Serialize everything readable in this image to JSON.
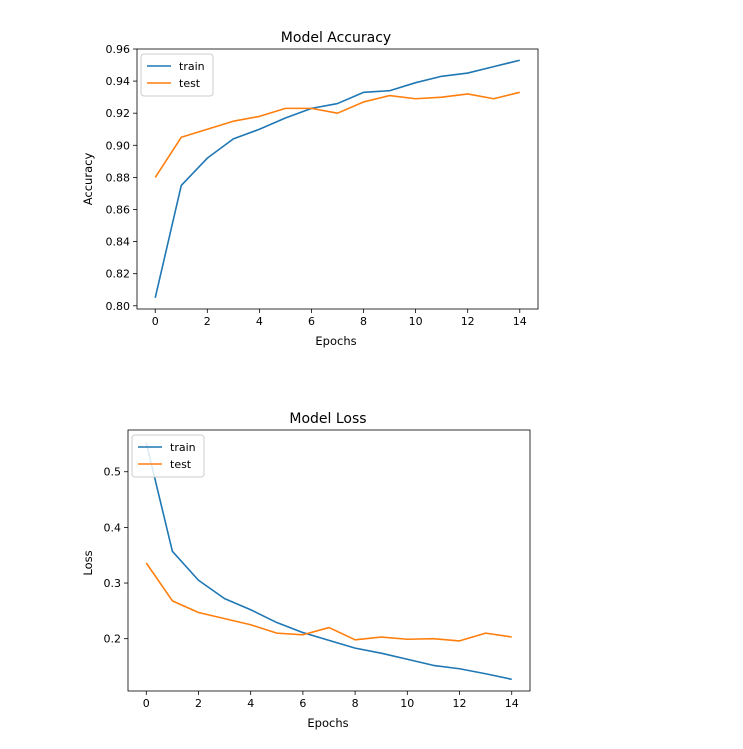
{
  "chart_data": [
    {
      "type": "line",
      "title": "Model Accuracy",
      "xlabel": "Epochs",
      "ylabel": "Accuracy",
      "x": [
        0,
        1,
        2,
        3,
        4,
        5,
        6,
        7,
        8,
        9,
        10,
        11,
        12,
        13,
        14
      ],
      "xlim": [
        -0.7,
        14.7
      ],
      "ylim": [
        0.798,
        0.96
      ],
      "xticks": [
        0,
        2,
        4,
        6,
        8,
        10,
        12,
        14
      ],
      "yticks": [
        0.8,
        0.82,
        0.84,
        0.86,
        0.88,
        0.9,
        0.92,
        0.94,
        0.96
      ],
      "ytick_labels": [
        "0.80",
        "0.82",
        "0.84",
        "0.86",
        "0.88",
        "0.90",
        "0.92",
        "0.94",
        "0.96"
      ],
      "grid": false,
      "legend": "upper-left",
      "series": [
        {
          "name": "train",
          "color": "#1f77b4",
          "values": [
            0.805,
            0.875,
            0.892,
            0.904,
            0.91,
            0.917,
            0.923,
            0.926,
            0.933,
            0.934,
            0.939,
            0.943,
            0.945,
            0.949,
            0.953
          ]
        },
        {
          "name": "test",
          "color": "#ff7f0e",
          "values": [
            0.88,
            0.905,
            0.91,
            0.915,
            0.918,
            0.923,
            0.923,
            0.92,
            0.927,
            0.931,
            0.929,
            0.93,
            0.932,
            0.929,
            0.933
          ]
        }
      ]
    },
    {
      "type": "line",
      "title": "Model Loss",
      "xlabel": "Epochs",
      "ylabel": "Loss",
      "x": [
        0,
        1,
        2,
        3,
        4,
        5,
        6,
        7,
        8,
        9,
        10,
        11,
        12,
        13,
        14
      ],
      "xlim": [
        -0.7,
        14.7
      ],
      "ylim": [
        0.106,
        0.575
      ],
      "xticks": [
        0,
        2,
        4,
        6,
        8,
        10,
        12,
        14
      ],
      "yticks": [
        0.2,
        0.3,
        0.4,
        0.5
      ],
      "ytick_labels": [
        "0.2",
        "0.3",
        "0.4",
        "0.5"
      ],
      "grid": false,
      "legend": "upper-left",
      "series": [
        {
          "name": "train",
          "color": "#1f77b4",
          "values": [
            0.552,
            0.357,
            0.305,
            0.272,
            0.252,
            0.229,
            0.211,
            0.197,
            0.183,
            0.174,
            0.163,
            0.152,
            0.146,
            0.137,
            0.127
          ]
        },
        {
          "name": "test",
          "color": "#ff7f0e",
          "values": [
            0.336,
            0.268,
            0.247,
            0.236,
            0.225,
            0.21,
            0.207,
            0.22,
            0.198,
            0.203,
            0.199,
            0.2,
            0.196,
            0.21,
            0.203
          ]
        }
      ]
    }
  ]
}
